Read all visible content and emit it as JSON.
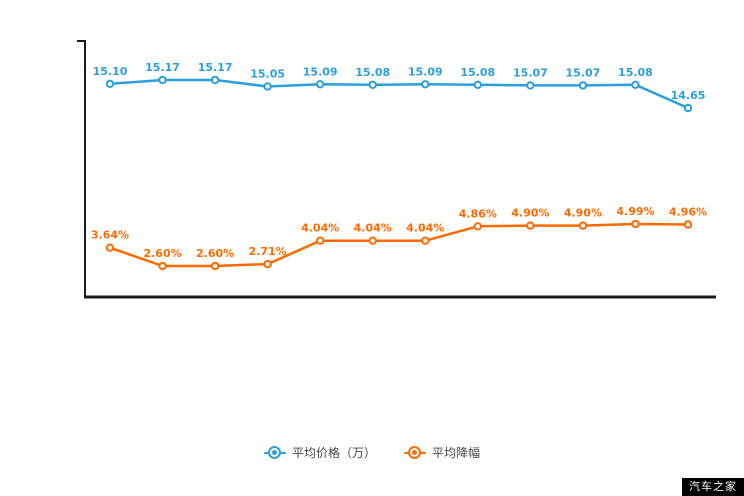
{
  "chart_data": {
    "type": "line",
    "title": "",
    "xlabel": "",
    "ylabel": "",
    "x_tick_labels": [],
    "grid": false,
    "legend_position": "bottom",
    "series": [
      {
        "name": "平均价格（万）",
        "color": "#2b9fdc",
        "unit": "万",
        "values": [
          15.1,
          15.17,
          15.17,
          15.05,
          15.09,
          15.08,
          15.09,
          15.08,
          15.07,
          15.07,
          15.08,
          14.65
        ],
        "labels": [
          "15.10",
          "15.17",
          "15.17",
          "15.05",
          "15.09",
          "15.08",
          "15.09",
          "15.08",
          "15.07",
          "15.07",
          "15.08",
          "14.65"
        ]
      },
      {
        "name": "平均降幅",
        "color": "#ff6a00",
        "unit": "%",
        "values": [
          3.64,
          2.6,
          2.6,
          2.71,
          4.04,
          4.04,
          4.04,
          4.86,
          4.9,
          4.9,
          4.99,
          4.96
        ],
        "labels": [
          "3.64%",
          "2.60%",
          "2.60%",
          "2.71%",
          "4.04%",
          "4.04%",
          "4.04%",
          "4.86%",
          "4.90%",
          "4.90%",
          "4.99%",
          "4.96%"
        ]
      }
    ]
  },
  "watermark": {
    "text": "汽车之家",
    "bg": "#000000",
    "fg": "#ffffff"
  }
}
